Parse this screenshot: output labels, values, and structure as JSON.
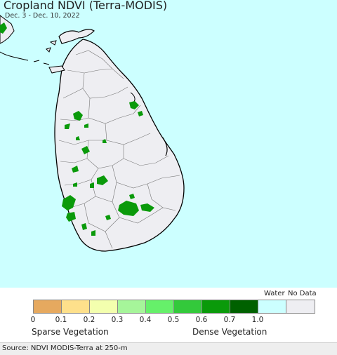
{
  "header": {
    "title": "Cropland NDVI (Terra-MODIS)",
    "date_range": "Dec. 3 - Dec. 10, 2022"
  },
  "map": {
    "region": "Sri Lanka",
    "ocean_color": "#ccffff",
    "land_color": "#eeeef2",
    "border_color": "#000000",
    "vegetation_color": "#0a9a0a"
  },
  "legend": {
    "water_label": "Water",
    "nodata_label": "No Data",
    "swatches": [
      {
        "range": "0-0.1",
        "color": "#e6a95f"
      },
      {
        "range": "0.1-0.2",
        "color": "#fee08b"
      },
      {
        "range": "0.2-0.3",
        "color": "#f3ffae"
      },
      {
        "range": "0.3-0.4",
        "color": "#a6f59a"
      },
      {
        "range": "0.4-0.5",
        "color": "#66f06a"
      },
      {
        "range": "0.5-0.6",
        "color": "#33c93b"
      },
      {
        "range": "0.6-0.7",
        "color": "#0a9a0a"
      },
      {
        "range": "0.7-1.0",
        "color": "#006100"
      },
      {
        "range": "water",
        "color": "#ccffff"
      },
      {
        "range": "no data",
        "color": "#eeeef2"
      }
    ],
    "ticks": [
      "0",
      "0.1",
      "0.2",
      "0.3",
      "0.4",
      "0.5",
      "0.6",
      "0.7",
      "1.0"
    ],
    "sparse_label": "Sparse Vegetation",
    "dense_label": "Dense Vegetation"
  },
  "footer": {
    "source": "Source: NDVI MODIS-Terra at 250-m"
  }
}
